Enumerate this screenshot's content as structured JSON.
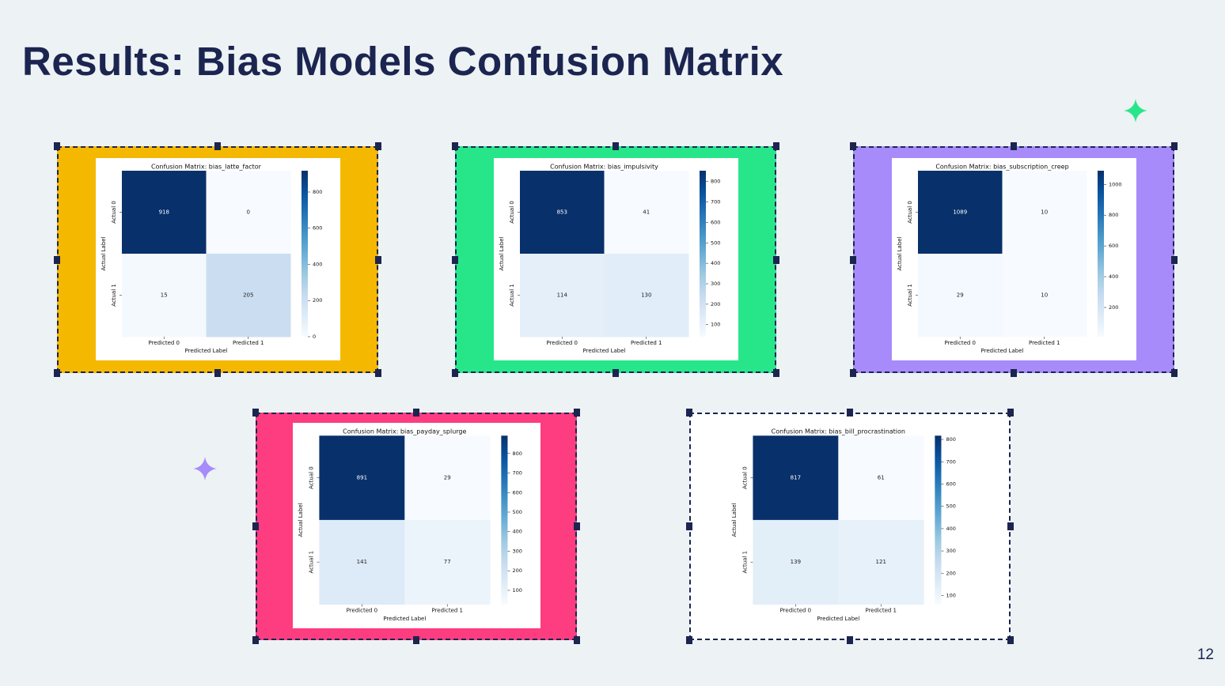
{
  "title": "Results: Bias Models Confusion Matrix",
  "page_number": 12,
  "chart_data": [
    {
      "type": "heatmap",
      "title": "Confusion Matrix: bias_latte_factor",
      "frame_color": "#f5b800",
      "colormap": "Blues",
      "x_categories": [
        "Predicted 0",
        "Predicted 1"
      ],
      "y_categories": [
        "Actual 0",
        "Actual 1"
      ],
      "xlabel": "Predicted Label",
      "ylabel": "Actual Label",
      "values": [
        [
          918,
          0
        ],
        [
          15,
          205
        ]
      ],
      "clim": [
        0,
        918
      ],
      "cticks": [
        0,
        200,
        400,
        600,
        800
      ]
    },
    {
      "type": "heatmap",
      "title": "Confusion Matrix: bias_impulsivity",
      "frame_color": "#27e68a",
      "colormap": "Blues",
      "x_categories": [
        "Predicted 0",
        "Predicted 1"
      ],
      "y_categories": [
        "Actual 0",
        "Actual 1"
      ],
      "xlabel": "Predicted Label",
      "ylabel": "Actual Label",
      "values": [
        [
          853,
          41
        ],
        [
          114,
          130
        ]
      ],
      "clim": [
        41,
        853
      ],
      "cticks": [
        100,
        200,
        300,
        400,
        500,
        600,
        700,
        800
      ]
    },
    {
      "type": "heatmap",
      "title": "Confusion Matrix: bias_subscription_creep",
      "frame_color": "#a78bfa",
      "colormap": "Blues",
      "x_categories": [
        "Predicted 0",
        "Predicted 1"
      ],
      "y_categories": [
        "Actual 0",
        "Actual 1"
      ],
      "xlabel": "Predicted Label",
      "ylabel": "Actual Label",
      "values": [
        [
          1089,
          10
        ],
        [
          29,
          10
        ]
      ],
      "clim": [
        10,
        1089
      ],
      "cticks": [
        200,
        400,
        600,
        800,
        1000
      ]
    },
    {
      "type": "heatmap",
      "title": "Confusion Matrix: bias_payday_splurge",
      "frame_color": "#fd3d80",
      "colormap": "Blues",
      "x_categories": [
        "Predicted 0",
        "Predicted 1"
      ],
      "y_categories": [
        "Actual 0",
        "Actual 1"
      ],
      "xlabel": "Predicted Label",
      "ylabel": "Actual Label",
      "values": [
        [
          891,
          29
        ],
        [
          141,
          77
        ]
      ],
      "clim": [
        29,
        891
      ],
      "cticks": [
        100,
        200,
        300,
        400,
        500,
        600,
        700,
        800
      ]
    },
    {
      "type": "heatmap",
      "title": "Confusion Matrix: bias_bill_procrastination",
      "frame_color": "#ffffff",
      "colormap": "Blues",
      "x_categories": [
        "Predicted 0",
        "Predicted 1"
      ],
      "y_categories": [
        "Actual 0",
        "Actual 1"
      ],
      "xlabel": "Predicted Label",
      "ylabel": "Actual Label",
      "values": [
        [
          817,
          61
        ],
        [
          139,
          121
        ]
      ],
      "clim": [
        61,
        817
      ],
      "cticks": [
        100,
        200,
        300,
        400,
        500,
        600,
        700,
        800
      ]
    }
  ]
}
